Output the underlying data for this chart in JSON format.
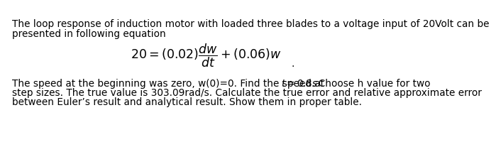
{
  "line1": "The loop response of induction motor with loaded three blades to a voltage input of 20Volt can be",
  "line2": "presented in following equation",
  "equation": "$20 = (0.02)\\dfrac{dw}{dt} + (0.06)w$",
  "period": ".",
  "para_line1a": "The speed at the beginning was zero, w(0)=0. Find the speed at ",
  "para_line1b": "$t = 0.8s$",
  "para_line1c": ". Choose h value for two",
  "para_line2": "step sizes. The true value is 303.09rad/s. Calculate the true error and relative approximate error",
  "para_line3": "between Euler’s result and analytical result. Show them in proper table.",
  "font_size": 9.8,
  "eq_font_size": 12.5,
  "bg_color": "#ffffff",
  "text_color": "#000000"
}
